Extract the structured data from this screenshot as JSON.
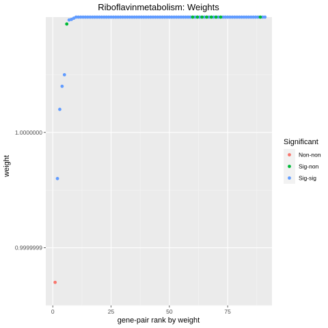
{
  "chart_data": {
    "type": "scatter",
    "title": "Riboflavinmetabolism: Weights",
    "xlabel": "gene-pair rank by weight",
    "ylabel": "weight",
    "xlim": [
      -3,
      94
    ],
    "ylim": [
      0.99999985,
      1.0000001
    ],
    "x_ticks": [
      0,
      25,
      50,
      75
    ],
    "x_tick_labels": [
      "0",
      "25",
      "50",
      "75"
    ],
    "y_ticks": [
      0.9999999,
      1.0
    ],
    "y_tick_labels": [
      "0.9999999",
      "1.0000000"
    ],
    "grid": true,
    "legend_title": "Significant",
    "legend_position": "right",
    "colors": {
      "Non-non": "#F8766D",
      "Sig-non": "#00BA38",
      "Sig-sig": "#619CFF"
    },
    "series": [
      {
        "name": "Non-non",
        "x": [
          1
        ],
        "y": [
          0.99999987
        ]
      },
      {
        "name": "Sig-non",
        "x": [
          6,
          60,
          62,
          64,
          66,
          68,
          70,
          72,
          89
        ],
        "y": [
          1.000000094,
          1.0000001,
          1.0000001,
          1.0000001,
          1.0000001,
          1.0000001,
          1.0000001,
          1.0000001,
          1.0000001
        ]
      },
      {
        "name": "Sig-sig",
        "x": [
          2,
          3,
          4,
          5,
          7,
          8,
          9,
          10,
          11,
          12,
          13,
          14,
          15,
          16,
          17,
          18,
          19,
          20,
          21,
          22,
          23,
          24,
          25,
          26,
          27,
          28,
          29,
          30,
          31,
          32,
          33,
          34,
          35,
          36,
          37,
          38,
          39,
          40,
          41,
          42,
          43,
          44,
          45,
          46,
          47,
          48,
          49,
          50,
          51,
          52,
          53,
          54,
          55,
          56,
          57,
          58,
          59,
          61,
          63,
          65,
          67,
          69,
          71,
          73,
          74,
          75,
          76,
          77,
          78,
          79,
          80,
          81,
          82,
          83,
          84,
          85,
          86,
          87,
          88,
          90,
          91
        ],
        "y": [
          0.99999996,
          1.00000002,
          1.00000004,
          1.00000005,
          1.0000000975,
          1.000000098,
          1.000000099,
          1.0000001,
          1.0000001,
          1.0000001,
          1.0000001,
          1.0000001,
          1.0000001,
          1.0000001,
          1.0000001,
          1.0000001,
          1.0000001,
          1.0000001,
          1.0000001,
          1.0000001,
          1.0000001,
          1.0000001,
          1.0000001,
          1.0000001,
          1.0000001,
          1.0000001,
          1.0000001,
          1.0000001,
          1.0000001,
          1.0000001,
          1.0000001,
          1.0000001,
          1.0000001,
          1.0000001,
          1.0000001,
          1.0000001,
          1.0000001,
          1.0000001,
          1.0000001,
          1.0000001,
          1.0000001,
          1.0000001,
          1.0000001,
          1.0000001,
          1.0000001,
          1.0000001,
          1.0000001,
          1.0000001,
          1.0000001,
          1.0000001,
          1.0000001,
          1.0000001,
          1.0000001,
          1.0000001,
          1.0000001,
          1.0000001,
          1.0000001,
          1.0000001,
          1.0000001,
          1.0000001,
          1.0000001,
          1.0000001,
          1.0000001,
          1.0000001,
          1.0000001,
          1.0000001,
          1.0000001,
          1.0000001,
          1.0000001,
          1.0000001,
          1.0000001,
          1.0000001,
          1.0000001,
          1.0000001,
          1.0000001,
          1.0000001,
          1.0000001,
          1.0000001,
          1.0000001,
          1.0000001,
          1.0000001
        ]
      }
    ],
    "legend_entries": [
      "Non-non",
      "Sig-non",
      "Sig-sig"
    ]
  }
}
